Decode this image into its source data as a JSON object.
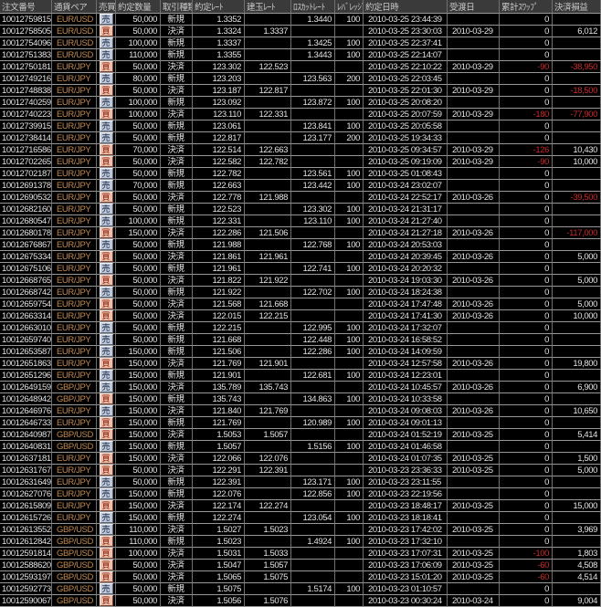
{
  "table": {
    "colors": {
      "bg": "#000000",
      "text": "#e2e2e2",
      "header_bg": "#3a3a3a",
      "header_text": "#c8c8c8",
      "grid_v": "#6f6f6f",
      "grid_h": "#979797",
      "pair": "#c08850",
      "neg": "#c62b2b",
      "badge_sell_bg": "#bfc9d9",
      "badge_sell_text": "#14233f",
      "badge_buy_bg": "#e9c0ac",
      "badge_buy_text": "#8c1500"
    },
    "columns": [
      "注文番号",
      "通貨ペア",
      "売買",
      "約定数量",
      "取引種類",
      "約定ﾚｰﾄ",
      "建玉ﾚｰﾄ",
      "ﾛｽｶｯﾄﾚｰﾄ",
      "ﾚﾊﾞﾚｯｼﾞ",
      "約定日時",
      "受渡日",
      "累計ｽﾜｯﾌﾟ",
      "決済損益"
    ],
    "rows": [
      [
        "10012759815",
        "EUR/USD",
        "売",
        "50,000",
        "新規",
        "1.3352",
        "",
        "1.3440",
        "100",
        "2010-03-25 23:44:39",
        "",
        "0",
        ""
      ],
      [
        "10012758505",
        "EUR/USD",
        "買",
        "50,000",
        "決済",
        "1.3324",
        "1.3337",
        "",
        "",
        "2010-03-25 23:30:03",
        "2010-03-29",
        "0",
        "6,012"
      ],
      [
        "10012754096",
        "EUR/USD",
        "売",
        "100,000",
        "新規",
        "1.3337",
        "",
        "1.3425",
        "100",
        "2010-03-25 22:37:41",
        "",
        "0",
        ""
      ],
      [
        "10012751383",
        "EUR/USD",
        "売",
        "110,000",
        "新規",
        "1.3355",
        "",
        "1.3443",
        "100",
        "2010-03-25 22:14:07",
        "",
        "0",
        ""
      ],
      [
        "10012750181",
        "EUR/JPY",
        "買",
        "50,000",
        "決済",
        "123.302",
        "122.523",
        "",
        "",
        "2010-03-25 22:10:22",
        "2010-03-29",
        "-90",
        "-38,950"
      ],
      [
        "10012749216",
        "EUR/JPY",
        "売",
        "80,000",
        "新規",
        "123.203",
        "",
        "123.563",
        "200",
        "2010-03-25 22:03:45",
        "",
        "0",
        ""
      ],
      [
        "10012748838",
        "EUR/JPY",
        "買",
        "50,000",
        "決済",
        "123.187",
        "122.817",
        "",
        "",
        "2010-03-25 22:01:30",
        "2010-03-29",
        "0",
        "-18,500"
      ],
      [
        "10012740259",
        "EUR/JPY",
        "売",
        "100,000",
        "新規",
        "123.092",
        "",
        "123.872",
        "100",
        "2010-03-25 20:08:20",
        "",
        "0",
        ""
      ],
      [
        "10012740223",
        "EUR/JPY",
        "買",
        "100,000",
        "決済",
        "123.110",
        "122.331",
        "",
        "",
        "2010-03-25 20:07:59",
        "2010-03-29",
        "-180",
        "-77,900"
      ],
      [
        "10012739915",
        "EUR/JPY",
        "売",
        "50,000",
        "新規",
        "123.061",
        "",
        "123.841",
        "100",
        "2010-03-25 20:05:58",
        "",
        "0",
        ""
      ],
      [
        "10012738414",
        "EUR/JPY",
        "売",
        "50,000",
        "新規",
        "122.817",
        "",
        "123.177",
        "200",
        "2010-03-25 19:34:33",
        "",
        "0",
        ""
      ],
      [
        "10012716586",
        "EUR/JPY",
        "買",
        "70,000",
        "決済",
        "122.514",
        "122.663",
        "",
        "",
        "2010-03-25 09:34:57",
        "2010-03-29",
        "-126",
        "10,430"
      ],
      [
        "10012702265",
        "EUR/JPY",
        "買",
        "50,000",
        "決済",
        "122.582",
        "122.782",
        "",
        "",
        "2010-03-25 09:19:09",
        "2010-03-29",
        "-90",
        "10,000"
      ],
      [
        "10012702187",
        "EUR/JPY",
        "売",
        "50,000",
        "新規",
        "122.782",
        "",
        "123.561",
        "100",
        "2010-03-25 01:08:43",
        "",
        "0",
        ""
      ],
      [
        "10012691378",
        "EUR/JPY",
        "売",
        "70,000",
        "新規",
        "122.663",
        "",
        "123.442",
        "100",
        "2010-03-24 23:02:07",
        "",
        "0",
        ""
      ],
      [
        "10012690532",
        "EUR/JPY",
        "買",
        "50,000",
        "決済",
        "122.778",
        "121.988",
        "",
        "",
        "2010-03-24 22:52:17",
        "2010-03-26",
        "0",
        "-39,500"
      ],
      [
        "10012682160",
        "EUR/JPY",
        "売",
        "50,000",
        "新規",
        "122.523",
        "",
        "123.302",
        "100",
        "2010-03-24 21:31:17",
        "",
        "0",
        ""
      ],
      [
        "10012680547",
        "EUR/JPY",
        "売",
        "100,000",
        "新規",
        "122.331",
        "",
        "123.110",
        "100",
        "2010-03-24 21:27:40",
        "",
        "0",
        ""
      ],
      [
        "10012680178",
        "EUR/JPY",
        "買",
        "150,000",
        "決済",
        "122.286",
        "121.506",
        "",
        "",
        "2010-03-24 21:27:18",
        "2010-03-26",
        "0",
        "-117,000"
      ],
      [
        "10012676867",
        "EUR/JPY",
        "売",
        "50,000",
        "新規",
        "121.988",
        "",
        "122.768",
        "100",
        "2010-03-24 20:53:03",
        "",
        "0",
        ""
      ],
      [
        "10012675334",
        "EUR/JPY",
        "買",
        "50,000",
        "決済",
        "121.861",
        "121.961",
        "",
        "",
        "2010-03-24 20:39:45",
        "2010-03-26",
        "0",
        "5,000"
      ],
      [
        "10012675106",
        "EUR/JPY",
        "売",
        "50,000",
        "新規",
        "121.961",
        "",
        "122.741",
        "100",
        "2010-03-24 20:20:32",
        "",
        "0",
        ""
      ],
      [
        "10012668765",
        "EUR/JPY",
        "買",
        "50,000",
        "決済",
        "121.822",
        "121.922",
        "",
        "",
        "2010-03-24 19:03:30",
        "2010-03-26",
        "0",
        "5,000"
      ],
      [
        "10012668742",
        "EUR/JPY",
        "売",
        "50,000",
        "新規",
        "121.922",
        "",
        "122.702",
        "100",
        "2010-03-24 18:24:38",
        "",
        "0",
        ""
      ],
      [
        "10012659754",
        "EUR/JPY",
        "買",
        "50,000",
        "決済",
        "121.568",
        "121.668",
        "",
        "",
        "2010-03-24 17:47:48",
        "2010-03-26",
        "0",
        "5,000"
      ],
      [
        "10012663314",
        "EUR/JPY",
        "買",
        "50,000",
        "決済",
        "122.015",
        "122.215",
        "",
        "",
        "2010-03-24 17:41:30",
        "2010-03-26",
        "0",
        "10,000"
      ],
      [
        "10012663010",
        "EUR/JPY",
        "売",
        "50,000",
        "新規",
        "122.215",
        "",
        "122.995",
        "100",
        "2010-03-24 17:32:07",
        "",
        "0",
        ""
      ],
      [
        "10012659740",
        "EUR/JPY",
        "売",
        "50,000",
        "新規",
        "121.668",
        "",
        "122.448",
        "100",
        "2010-03-24 16:58:52",
        "",
        "0",
        ""
      ],
      [
        "10012653587",
        "EUR/JPY",
        "売",
        "150,000",
        "新規",
        "121.506",
        "",
        "122.286",
        "100",
        "2010-03-24 14:09:59",
        "",
        "0",
        ""
      ],
      [
        "10012651863",
        "EUR/JPY",
        "買",
        "150,000",
        "決済",
        "121.769",
        "121.901",
        "",
        "",
        "2010-03-24 12:57:58",
        "2010-03-26",
        "0",
        "19,800"
      ],
      [
        "10012651296",
        "EUR/JPY",
        "売",
        "150,000",
        "新規",
        "121.901",
        "",
        "122.681",
        "100",
        "2010-03-24 12:23:01",
        "",
        "0",
        ""
      ],
      [
        "10012649159",
        "GBP/JPY",
        "売",
        "150,000",
        "決済",
        "135.789",
        "135.743",
        "",
        "",
        "2010-03-24 10:45:57",
        "2010-03-26",
        "0",
        "6,900"
      ],
      [
        "10012648942",
        "GBP/JPY",
        "買",
        "150,000",
        "新規",
        "135.743",
        "",
        "134.863",
        "100",
        "2010-03-24 10:33:58",
        "",
        "0",
        ""
      ],
      [
        "10012646976",
        "EUR/JPY",
        "売",
        "150,000",
        "決済",
        "121.840",
        "121.769",
        "",
        "",
        "2010-03-24 09:08:03",
        "2010-03-26",
        "0",
        "10,650"
      ],
      [
        "10012646733",
        "EUR/JPY",
        "買",
        "150,000",
        "新規",
        "121.769",
        "",
        "120.989",
        "100",
        "2010-03-24 09:01:13",
        "",
        "0",
        ""
      ],
      [
        "10012640987",
        "GBP/USD",
        "買",
        "150,000",
        "決済",
        "1.5053",
        "1.5057",
        "",
        "",
        "2010-03-24 01:52:19",
        "2010-03-25",
        "0",
        "5,414"
      ],
      [
        "10012640831",
        "GBP/USD",
        "売",
        "150,000",
        "新規",
        "1.5057",
        "",
        "1.5156",
        "100",
        "2010-03-24 01:46:58",
        "",
        "0",
        ""
      ],
      [
        "10012637181",
        "EUR/JPY",
        "買",
        "150,000",
        "決済",
        "122.066",
        "122.076",
        "",
        "",
        "2010-03-24 01:07:35",
        "2010-03-25",
        "0",
        "1,500"
      ],
      [
        "10012631767",
        "EUR/JPY",
        "買",
        "50,000",
        "決済",
        "122.291",
        "122.391",
        "",
        "",
        "2010-03-23 23:36:33",
        "2010-03-25",
        "0",
        "5,000"
      ],
      [
        "10012631649",
        "EUR/JPY",
        "売",
        "50,000",
        "新規",
        "122.391",
        "",
        "123.171",
        "100",
        "2010-03-23 23:11:55",
        "",
        "0",
        ""
      ],
      [
        "10012627076",
        "EUR/JPY",
        "売",
        "150,000",
        "新規",
        "122.076",
        "",
        "122.856",
        "100",
        "2010-03-23 22:19:56",
        "",
        "0",
        ""
      ],
      [
        "10012615809",
        "EUR/JPY",
        "買",
        "150,000",
        "決済",
        "122.174",
        "122.274",
        "",
        "",
        "2010-03-23 18:48:17",
        "2010-03-25",
        "0",
        "15,000"
      ],
      [
        "10012615726",
        "EUR/JPY",
        "売",
        "150,000",
        "新規",
        "122.274",
        "",
        "123.054",
        "100",
        "2010-03-23 18:18:41",
        "",
        "0",
        ""
      ],
      [
        "10012613552",
        "GBP/USD",
        "売",
        "110,000",
        "決済",
        "1.5027",
        "1.5023",
        "",
        "",
        "2010-03-23 17:42:02",
        "2010-03-25",
        "0",
        "3,969"
      ],
      [
        "10012612842",
        "GBP/USD",
        "買",
        "110,000",
        "新規",
        "1.5023",
        "",
        "1.4924",
        "100",
        "2010-03-23 17:32:10",
        "",
        "0",
        ""
      ],
      [
        "10012591814",
        "GBP/USD",
        "買",
        "100,000",
        "決済",
        "1.5031",
        "1.5033",
        "",
        "",
        "2010-03-23 17:07:31",
        "2010-03-25",
        "-100",
        "1,803"
      ],
      [
        "10012588620",
        "GBP/USD",
        "買",
        "50,000",
        "決済",
        "1.5047",
        "1.5057",
        "",
        "",
        "2010-03-23 17:06:09",
        "2010-03-25",
        "-60",
        "4,508"
      ],
      [
        "10012593197",
        "GBP/USD",
        "買",
        "50,000",
        "決済",
        "1.5065",
        "1.5075",
        "",
        "",
        "2010-03-23 15:01:20",
        "2010-03-25",
        "-60",
        "4,514"
      ],
      [
        "10012592773",
        "GBP/USD",
        "売",
        "50,000",
        "新規",
        "1.5075",
        "",
        "1.5174",
        "100",
        "2010-03-23 01:10:57",
        "",
        "0",
        ""
      ],
      [
        "10012590067",
        "GBP/USD",
        "買",
        "50,000",
        "決済",
        "1.5056",
        "1.5076",
        "",
        "",
        "2010-03-23 00:30:24",
        "2010-03-24",
        "0",
        "9,004"
      ]
    ]
  }
}
